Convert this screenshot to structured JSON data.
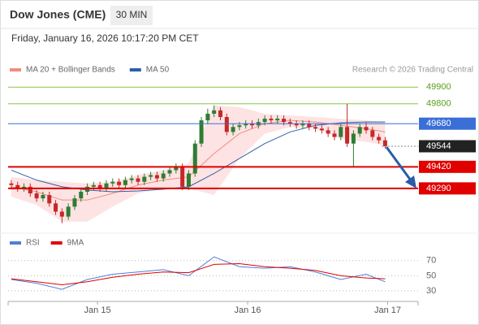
{
  "header": {
    "title": "Dow Jones (CME)",
    "interval": "30 MIN",
    "datetime": "Friday, January 16, 2026 10:17:20 PM CET",
    "credit": "Research © 2026 Trading Central"
  },
  "chart_data": [
    {
      "type": "candlestick",
      "legend": [
        {
          "name": "MA 20 + Bollinger Bands",
          "color": "#f28b82"
        },
        {
          "name": "MA 50",
          "color": "#2e5fa8"
        }
      ],
      "candles": {
        "open": [
          49320,
          49310,
          49290,
          49300,
          49260,
          49230,
          49250,
          49200,
          49150,
          49120,
          49180,
          49230,
          49270,
          49300,
          49310,
          49290,
          49320,
          49330,
          49310,
          49340,
          49350,
          49330,
          49360,
          49370,
          49350,
          49380,
          49400,
          49420,
          49300,
          49380,
          49560,
          49700,
          49740,
          49760,
          49720,
          49630,
          49660,
          49670,
          49680,
          49670,
          49690,
          49710,
          49700,
          49710,
          49690,
          49680,
          49670,
          49680,
          49660,
          49650,
          49640,
          49620,
          49600,
          49660,
          49560,
          49620,
          49660,
          49640,
          49600,
          49580
        ],
        "high": [
          49340,
          49330,
          49320,
          49320,
          49280,
          49270,
          49270,
          49220,
          49170,
          49200,
          49250,
          49290,
          49320,
          49330,
          49330,
          49340,
          49350,
          49350,
          49360,
          49370,
          49370,
          49380,
          49390,
          49390,
          49400,
          49420,
          49440,
          49440,
          49400,
          49580,
          49720,
          49770,
          49790,
          49780,
          49740,
          49680,
          49690,
          49700,
          49700,
          49710,
          49730,
          49730,
          49730,
          49730,
          49710,
          49700,
          49700,
          49700,
          49680,
          49670,
          49660,
          49640,
          49680,
          49800,
          49640,
          49680,
          49690,
          49660,
          49620,
          49600
        ],
        "low": [
          49290,
          49270,
          49270,
          49240,
          49210,
          49210,
          49180,
          49130,
          49080,
          49100,
          49160,
          49210,
          49250,
          49280,
          49270,
          49270,
          49300,
          49290,
          49290,
          49320,
          49310,
          49310,
          49340,
          49330,
          49330,
          49360,
          49380,
          49280,
          49280,
          49360,
          49540,
          49680,
          49720,
          49700,
          49610,
          49610,
          49640,
          49650,
          49650,
          49650,
          49670,
          49680,
          49680,
          49670,
          49660,
          49650,
          49650,
          49640,
          49630,
          49620,
          49600,
          49580,
          49580,
          49540,
          49420,
          49600,
          49620,
          49580,
          49560,
          49530
        ],
        "close": [
          49310,
          49290,
          49300,
          49260,
          49230,
          49250,
          49200,
          49150,
          49120,
          49180,
          49230,
          49270,
          49300,
          49310,
          49290,
          49320,
          49330,
          49310,
          49340,
          49350,
          49330,
          49360,
          49370,
          49350,
          49380,
          49400,
          49420,
          49300,
          49380,
          49560,
          49700,
          49740,
          49760,
          49720,
          49630,
          49660,
          49670,
          49680,
          49670,
          49690,
          49710,
          49700,
          49710,
          49690,
          49680,
          49670,
          49680,
          49660,
          49650,
          49640,
          49620,
          49600,
          49660,
          49560,
          49620,
          49660,
          49640,
          49600,
          49580,
          49544
        ]
      },
      "up_color": "#2e7d32",
      "down_color": "#c62828",
      "line_x": [
        0,
        4,
        8,
        12,
        16,
        20,
        24,
        28,
        32,
        36,
        40,
        44,
        48,
        52,
        56,
        59
      ],
      "ma20": [
        49300,
        49270,
        49220,
        49220,
        49260,
        49310,
        49340,
        49360,
        49500,
        49620,
        49680,
        49700,
        49690,
        49670,
        49650,
        49630
      ],
      "ma50": [
        49400,
        49340,
        49300,
        49280,
        49270,
        49275,
        49285,
        49300,
        49380,
        49470,
        49560,
        49630,
        49670,
        49685,
        49690,
        49690
      ],
      "bollinger": {
        "upper": [
          49360,
          49340,
          49330,
          49320,
          49330,
          49370,
          49400,
          49440,
          49790,
          49780,
          49740,
          49730,
          49720,
          49710,
          49700,
          49690
        ],
        "lower": [
          49240,
          49190,
          49090,
          49090,
          49180,
          49260,
          49290,
          49290,
          49250,
          49470,
          49620,
          49660,
          49650,
          49590,
          49570,
          49550
        ],
        "color": "#fde3e3"
      },
      "guide_levels": [
        {
          "value": 49900,
          "color": "#8bc34a"
        },
        {
          "value": 49800,
          "color": "#8bc34a"
        }
      ],
      "marked_levels": [
        {
          "value": 49680,
          "color": "#3a6fd8"
        },
        {
          "value": 49544,
          "color": "#222222"
        },
        {
          "value": 49420,
          "color": "#e00000"
        },
        {
          "value": 49290,
          "color": "#e00000"
        }
      ],
      "ylim": [
        49030,
        49960
      ],
      "xlim": [
        -0.5,
        64.2
      ],
      "xticks": [
        {
          "value": 13.6,
          "label": "Jan 15"
        },
        {
          "value": 37.3,
          "label": "Jan 16"
        },
        {
          "value": 59.4,
          "label": "Jan 17"
        }
      ]
    },
    {
      "type": "line",
      "x": [
        0,
        4,
        8,
        12,
        16,
        20,
        24,
        28,
        32,
        36,
        40,
        44,
        48,
        52,
        56,
        59
      ],
      "series": [
        {
          "name": "RSI",
          "color": "#4f7fd8",
          "values": [
            45,
            40,
            32,
            45,
            52,
            55,
            58,
            50,
            75,
            62,
            60,
            62,
            55,
            45,
            52,
            42
          ]
        },
        {
          "name": "9MA",
          "color": "#e00000",
          "values": [
            46,
            42,
            38,
            42,
            48,
            52,
            55,
            54,
            65,
            66,
            62,
            60,
            57,
            50,
            47,
            46
          ]
        }
      ],
      "ylim": [
        17,
        87
      ],
      "yticks": [
        70,
        50,
        30
      ],
      "xlim": [
        -0.5,
        64.2
      ]
    }
  ]
}
